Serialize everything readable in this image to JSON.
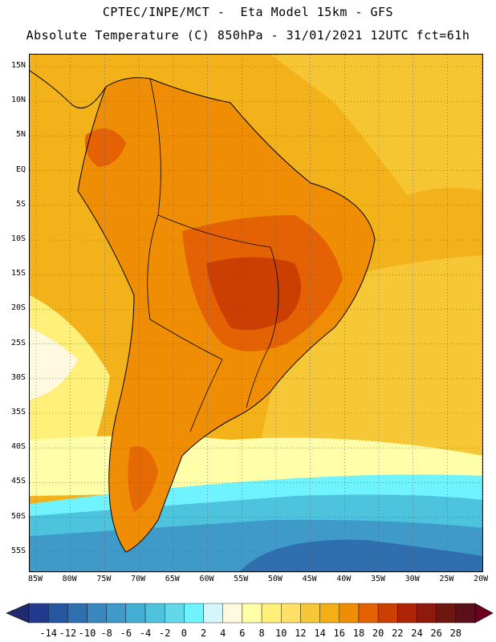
{
  "title": {
    "line1": "CPTEC/INPE/MCT -  Eta Model 15km - GFS",
    "line2": "Absolute Temperature (C) 850hPa - 31/01/2021 12UTC fct=61h"
  },
  "map": {
    "lat_labels": [
      "15N",
      "10N",
      "5N",
      "EQ",
      "5S",
      "10S",
      "15S",
      "20S",
      "25S",
      "30S",
      "35S",
      "40S",
      "45S",
      "50S",
      "55S"
    ],
    "lon_labels": [
      "85W",
      "80W",
      "75W",
      "70W",
      "65W",
      "60W",
      "55W",
      "50W",
      "45W",
      "40W",
      "35W",
      "30W",
      "25W",
      "20W"
    ]
  },
  "colorbar": {
    "labels": [
      "-14",
      "-12",
      "-10",
      "-8",
      "-6",
      "-4",
      "-2",
      "0",
      "2",
      "4",
      "6",
      "8",
      "10",
      "12",
      "14",
      "16",
      "18",
      "20",
      "22",
      "24",
      "26",
      "28"
    ],
    "colors": [
      "#233a8c",
      "#2756a0",
      "#2f6fb0",
      "#3a86bf",
      "#3f9ac9",
      "#45aed4",
      "#4dc3de",
      "#62d8ea",
      "#6ff4ff",
      "#d3f6fb",
      "#fff9e0",
      "#ffffaa",
      "#fff07a",
      "#ffe066",
      "#f6c837",
      "#f3af13",
      "#ef8e05",
      "#e46204",
      "#cc3f03",
      "#ae2407",
      "#8d1a0c",
      "#6e1610",
      "#5a0f1a"
    ],
    "color_under": "#202a6e",
    "color_over": "#6b0020"
  },
  "palette": {
    "ocean_warm": "#f3b21a",
    "ocean_mid": "#f6c837",
    "ocean_cool": "#fff07a",
    "land_base": "#ef8e05",
    "land_hot": "#e46204",
    "land_hotter": "#cc3f03",
    "south_cold": "#4dc3de",
    "south_colder": "#3a86bf",
    "south_coldest": "#2756a0"
  }
}
